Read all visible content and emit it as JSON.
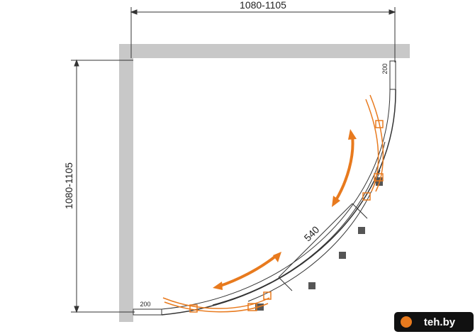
{
  "dimensions": {
    "width": "1080-1105",
    "depth": "1080-1105",
    "door_opening": "540",
    "profile_top": "200",
    "profile_bottom": "200"
  },
  "watermark": "teh.by"
}
